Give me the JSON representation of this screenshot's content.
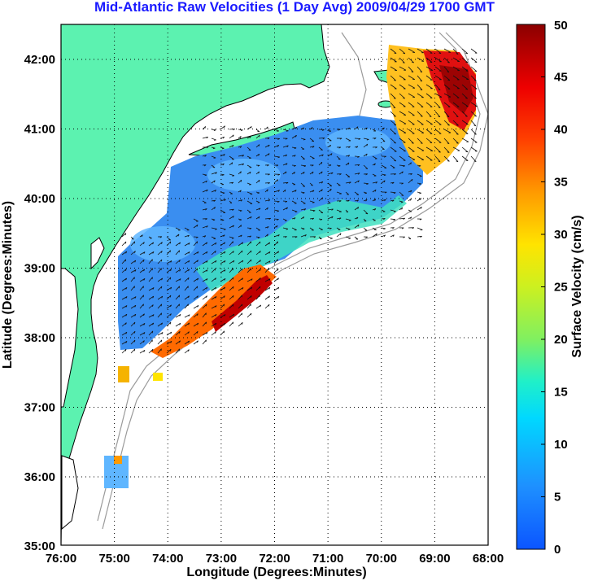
{
  "title": "Mid-Atlantic Raw Velocities (1 Day Avg) 2009/04/29 1700 GMT",
  "map": {
    "xlabel": "Longitude (Degrees:Minutes)",
    "ylabel": "Latitude (Degrees:Minutes)",
    "x_ticks": [
      "76:00",
      "75:00",
      "74:00",
      "73:00",
      "72:00",
      "71:00",
      "70:00",
      "69:00",
      "68:00"
    ],
    "y_ticks": [
      "42:00",
      "41:00",
      "40:00",
      "39:00",
      "38:00",
      "37:00",
      "36:00",
      "35:00"
    ],
    "lon_range": [
      -76,
      -68
    ],
    "lat_range": [
      35,
      42.5
    ],
    "grid": true,
    "land_color": "#5cf2b0",
    "coast_color": "#000000",
    "bathymetry_color": "#9a9a9a"
  },
  "colorbar": {
    "label": "Surface Velocity (cm/s)",
    "ticks": [
      "0",
      "5",
      "10",
      "15",
      "20",
      "25",
      "30",
      "35",
      "40",
      "45",
      "50"
    ],
    "range": [
      0,
      50
    ],
    "colormap": "jet"
  }
}
